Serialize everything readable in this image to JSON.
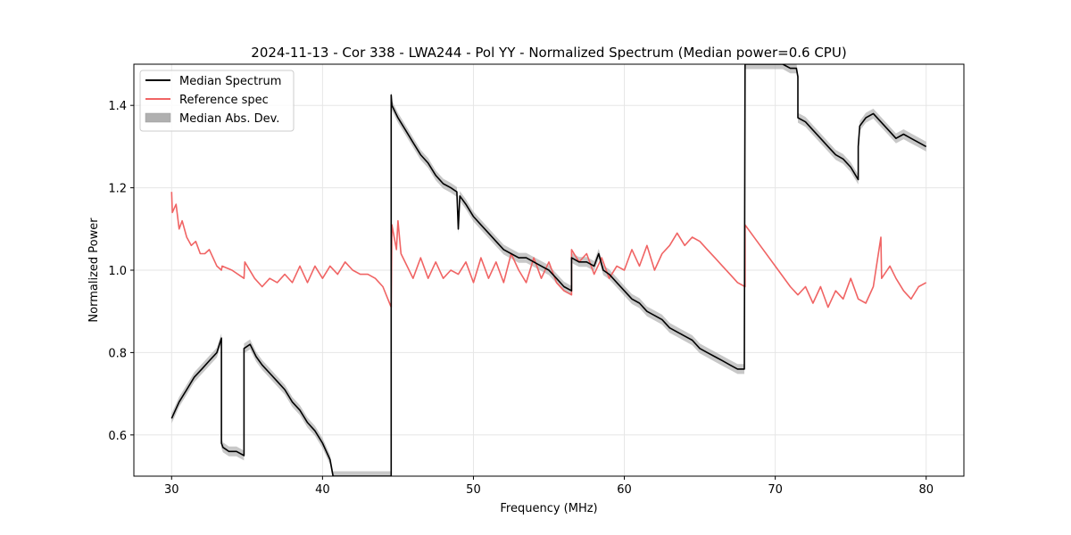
{
  "chart_data": {
    "type": "line",
    "title": "2024-11-13 - Cor 338 - LWA244 - Pol YY - Normalized Spectrum (Median power=0.6 CPU)",
    "xlabel": "Frequency (MHz)",
    "ylabel": "Normalized Power",
    "xlim": [
      27.5,
      82.5
    ],
    "ylim": [
      0.5,
      1.5
    ],
    "xticks": [
      30,
      40,
      50,
      60,
      70,
      80
    ],
    "yticks": [
      0.6,
      0.8,
      1.0,
      1.2,
      1.4
    ],
    "xtick_labels": [
      "30",
      "40",
      "50",
      "60",
      "70",
      "80"
    ],
    "ytick_labels": [
      "0.6",
      "0.8",
      "1.0",
      "1.2",
      "1.4"
    ],
    "grid": true,
    "legend_position": "top-left",
    "legend": [
      "Median Spectrum",
      "Reference spec",
      "Median Abs. Dev."
    ],
    "colors": {
      "median": "#000000",
      "reference": "#f06464",
      "mad_fill": "#b0b0b0",
      "grid": "#e6e6e6"
    },
    "series": [
      {
        "name": "Median Spectrum",
        "x": [
          30.0,
          30.5,
          31.0,
          31.5,
          32.0,
          32.5,
          33.0,
          33.3,
          33.3,
          33.4,
          33.8,
          34.3,
          34.8,
          34.8,
          35.2,
          35.6,
          36.0,
          36.5,
          37.0,
          37.5,
          38.0,
          38.5,
          39.0,
          39.5,
          40.0,
          40.5,
          40.7,
          40.75,
          44.55,
          44.55,
          44.6,
          45.0,
          45.5,
          46.0,
          46.5,
          47.0,
          47.5,
          48.0,
          48.5,
          48.9,
          49.0,
          49.1,
          49.5,
          50.0,
          50.5,
          51.0,
          51.5,
          52.0,
          52.5,
          53.0,
          53.5,
          54.0,
          54.5,
          55.0,
          55.5,
          56.0,
          56.5,
          56.5,
          57.0,
          57.5,
          58.0,
          58.3,
          58.6,
          59.0,
          59.5,
          60.0,
          60.5,
          61.0,
          61.5,
          62.0,
          62.5,
          63.0,
          63.5,
          64.0,
          64.5,
          65.0,
          65.5,
          66.0,
          66.5,
          67.0,
          67.5,
          67.9,
          67.95,
          68.0,
          68.0,
          69.0,
          70.0,
          70.5,
          71.0,
          71.4,
          71.5,
          71.5,
          72.0,
          72.5,
          73.0,
          73.5,
          74.0,
          74.5,
          75.0,
          75.5,
          75.5,
          75.6,
          76.0,
          76.5,
          77.0,
          77.5,
          78.0,
          78.5,
          79.0,
          79.5,
          80.0
        ],
        "y": [
          0.64,
          0.68,
          0.71,
          0.74,
          0.76,
          0.78,
          0.8,
          0.835,
          0.58,
          0.57,
          0.56,
          0.56,
          0.55,
          0.81,
          0.82,
          0.79,
          0.77,
          0.75,
          0.73,
          0.71,
          0.68,
          0.66,
          0.63,
          0.61,
          0.58,
          0.54,
          0.5,
          0.5,
          0.5,
          1.425,
          1.4,
          1.37,
          1.34,
          1.31,
          1.28,
          1.26,
          1.23,
          1.21,
          1.2,
          1.19,
          1.1,
          1.18,
          1.16,
          1.13,
          1.11,
          1.09,
          1.07,
          1.05,
          1.04,
          1.03,
          1.03,
          1.02,
          1.01,
          1.0,
          0.98,
          0.96,
          0.95,
          1.03,
          1.02,
          1.02,
          1.01,
          1.04,
          1.0,
          0.99,
          0.97,
          0.95,
          0.93,
          0.92,
          0.9,
          0.89,
          0.88,
          0.86,
          0.85,
          0.84,
          0.83,
          0.81,
          0.8,
          0.79,
          0.78,
          0.77,
          0.76,
          0.76,
          0.76,
          1.5,
          1.5,
          1.5,
          1.5,
          1.5,
          1.49,
          1.49,
          1.47,
          1.37,
          1.36,
          1.34,
          1.32,
          1.3,
          1.28,
          1.27,
          1.25,
          1.22,
          1.3,
          1.35,
          1.37,
          1.38,
          1.36,
          1.34,
          1.32,
          1.33,
          1.32,
          1.31,
          1.3
        ]
      },
      {
        "name": "Reference spec",
        "x": [
          30.0,
          30.05,
          30.3,
          30.5,
          30.7,
          31.0,
          31.3,
          31.6,
          31.9,
          32.2,
          32.5,
          33.0,
          33.3,
          33.35,
          34.0,
          34.8,
          34.85,
          35.5,
          36.0,
          36.5,
          37.0,
          37.5,
          38.0,
          38.5,
          39.0,
          39.5,
          40.0,
          40.5,
          41.0,
          41.5,
          42.0,
          42.5,
          43.0,
          43.5,
          44.0,
          44.55,
          44.6,
          44.9,
          45.0,
          45.2,
          45.6,
          46.0,
          46.5,
          47.0,
          47.5,
          48.0,
          48.5,
          49.0,
          49.5,
          50.0,
          50.5,
          51.0,
          51.5,
          52.0,
          52.5,
          53.0,
          53.5,
          54.0,
          54.5,
          55.0,
          55.5,
          56.0,
          56.5,
          56.5,
          57.0,
          57.5,
          58.0,
          58.5,
          59.0,
          59.5,
          60.0,
          60.5,
          61.0,
          61.5,
          62.0,
          62.5,
          63.0,
          63.5,
          64.0,
          64.5,
          65.0,
          65.5,
          66.0,
          66.5,
          67.0,
          67.5,
          68.0,
          68.0,
          69.0,
          70.0,
          71.0,
          71.5,
          72.0,
          72.5,
          73.0,
          73.5,
          74.0,
          74.5,
          75.0,
          75.5,
          76.0,
          76.5,
          77.0,
          77.05,
          77.6,
          78.0,
          78.5,
          79.0,
          79.5,
          80.0
        ],
        "y": [
          1.19,
          1.14,
          1.16,
          1.1,
          1.12,
          1.08,
          1.06,
          1.07,
          1.04,
          1.04,
          1.05,
          1.01,
          1.0,
          1.01,
          1.0,
          0.98,
          1.02,
          0.98,
          0.96,
          0.98,
          0.97,
          0.99,
          0.97,
          1.01,
          0.97,
          1.01,
          0.98,
          1.01,
          0.99,
          1.02,
          1.0,
          0.99,
          0.99,
          0.98,
          0.96,
          0.91,
          1.11,
          1.05,
          1.12,
          1.04,
          1.01,
          0.98,
          1.03,
          0.98,
          1.02,
          0.98,
          1.0,
          0.99,
          1.02,
          0.97,
          1.03,
          0.98,
          1.02,
          0.97,
          1.04,
          1.0,
          0.97,
          1.03,
          0.98,
          1.02,
          0.97,
          0.95,
          0.94,
          1.05,
          1.02,
          1.04,
          0.99,
          1.03,
          0.98,
          1.01,
          1.0,
          1.05,
          1.01,
          1.06,
          1.0,
          1.04,
          1.06,
          1.09,
          1.06,
          1.08,
          1.07,
          1.05,
          1.03,
          1.01,
          0.99,
          0.97,
          0.96,
          1.11,
          1.06,
          1.01,
          0.96,
          0.94,
          0.96,
          0.92,
          0.96,
          0.91,
          0.95,
          0.93,
          0.98,
          0.93,
          0.92,
          0.96,
          1.08,
          0.98,
          1.01,
          0.98,
          0.95,
          0.93,
          0.96,
          0.97
        ]
      }
    ],
    "mad_halfwidth": 0.012
  }
}
